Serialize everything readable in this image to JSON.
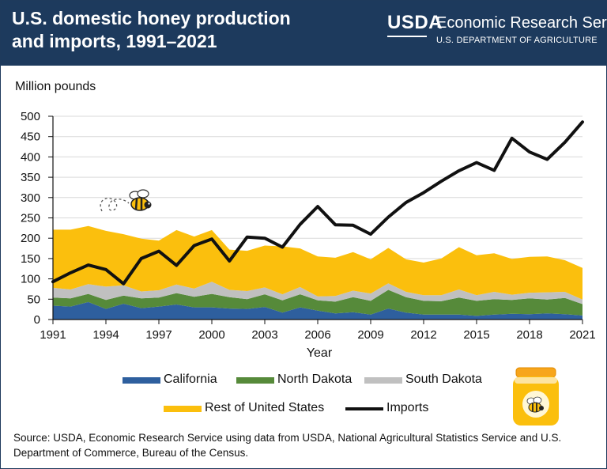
{
  "header": {
    "title": "U.S. domestic honey production and imports, 1991–2021",
    "logo_word": "USDA",
    "agency": "Economic Research Service",
    "department": "U.S. DEPARTMENT OF AGRICULTURE"
  },
  "colors": {
    "header_bg": "#1d3a5d",
    "california": "#2e5f9e",
    "north_dakota": "#568a3a",
    "south_dakota": "#c0c0c0",
    "rest_of_us": "#fbbf0d",
    "imports": "#111111"
  },
  "legend": {
    "california": "California",
    "north_dakota": "North Dakota",
    "south_dakota": "South Dakota",
    "rest_of_us": "Rest of United States",
    "imports": "Imports"
  },
  "footer": {
    "source": "Source: USDA, Economic Research Service using data from USDA, National Agricultural Statistics Service and U.S. Department of Commerce, Bureau of the Census."
  },
  "chart_data": {
    "type": "area",
    "title": "U.S. domestic honey production and imports, 1991–2021",
    "ylabel": "Million pounds",
    "xlabel": "Year",
    "ylim": [
      0,
      500
    ],
    "xlim": [
      1991,
      2021
    ],
    "yticks": [
      0,
      50,
      100,
      150,
      200,
      250,
      300,
      350,
      400,
      450,
      500
    ],
    "xticks": [
      1991,
      1994,
      1997,
      2000,
      2003,
      2006,
      2009,
      2012,
      2015,
      2018,
      2021
    ],
    "grid": "horizontal",
    "legend_position": "bottom",
    "stacked": true,
    "x": [
      1991,
      1992,
      1993,
      1994,
      1995,
      1996,
      1997,
      1998,
      1999,
      2000,
      2001,
      2002,
      2003,
      2004,
      2005,
      2006,
      2007,
      2008,
      2009,
      2010,
      2011,
      2012,
      2013,
      2014,
      2015,
      2016,
      2017,
      2018,
      2019,
      2020,
      2021
    ],
    "series": [
      {
        "name": "California",
        "kind": "area",
        "values": [
          34,
          32,
          43,
          26,
          39,
          28,
          32,
          37,
          30,
          30,
          27,
          26,
          31,
          17,
          30,
          22,
          15,
          18,
          12,
          27,
          17,
          12,
          12,
          12,
          9,
          12,
          14,
          13,
          15,
          13,
          10
        ]
      },
      {
        "name": "North Dakota",
        "kind": "area",
        "values": [
          20,
          20,
          20,
          22,
          20,
          24,
          22,
          28,
          26,
          33,
          28,
          24,
          31,
          30,
          32,
          25,
          29,
          37,
          34,
          46,
          38,
          34,
          33,
          42,
          37,
          38,
          34,
          39,
          34,
          40,
          28
        ]
      },
      {
        "name": "South Dakota",
        "kind": "area",
        "values": [
          24,
          22,
          24,
          33,
          25,
          17,
          18,
          21,
          20,
          30,
          18,
          20,
          17,
          15,
          18,
          10,
          14,
          16,
          18,
          16,
          13,
          14,
          15,
          20,
          14,
          18,
          13,
          14,
          18,
          15,
          11
        ]
      },
      {
        "name": "Rest of United States",
        "kind": "area",
        "values": [
          143,
          147,
          143,
          137,
          126,
          130,
          122,
          134,
          128,
          127,
          99,
          99,
          103,
          118,
          95,
          98,
          94,
          95,
          84,
          87,
          80,
          80,
          90,
          104,
          98,
          95,
          88,
          88,
          88,
          78,
          78
        ]
      },
      {
        "name": "Imports",
        "kind": "line",
        "values": [
          93,
          115,
          134,
          123,
          88,
          150,
          168,
          133,
          182,
          198,
          144,
          203,
          200,
          178,
          234,
          278,
          233,
          232,
          210,
          252,
          288,
          312,
          340,
          366,
          386,
          367,
          446,
          412,
          394,
          436,
          486
        ]
      }
    ]
  }
}
